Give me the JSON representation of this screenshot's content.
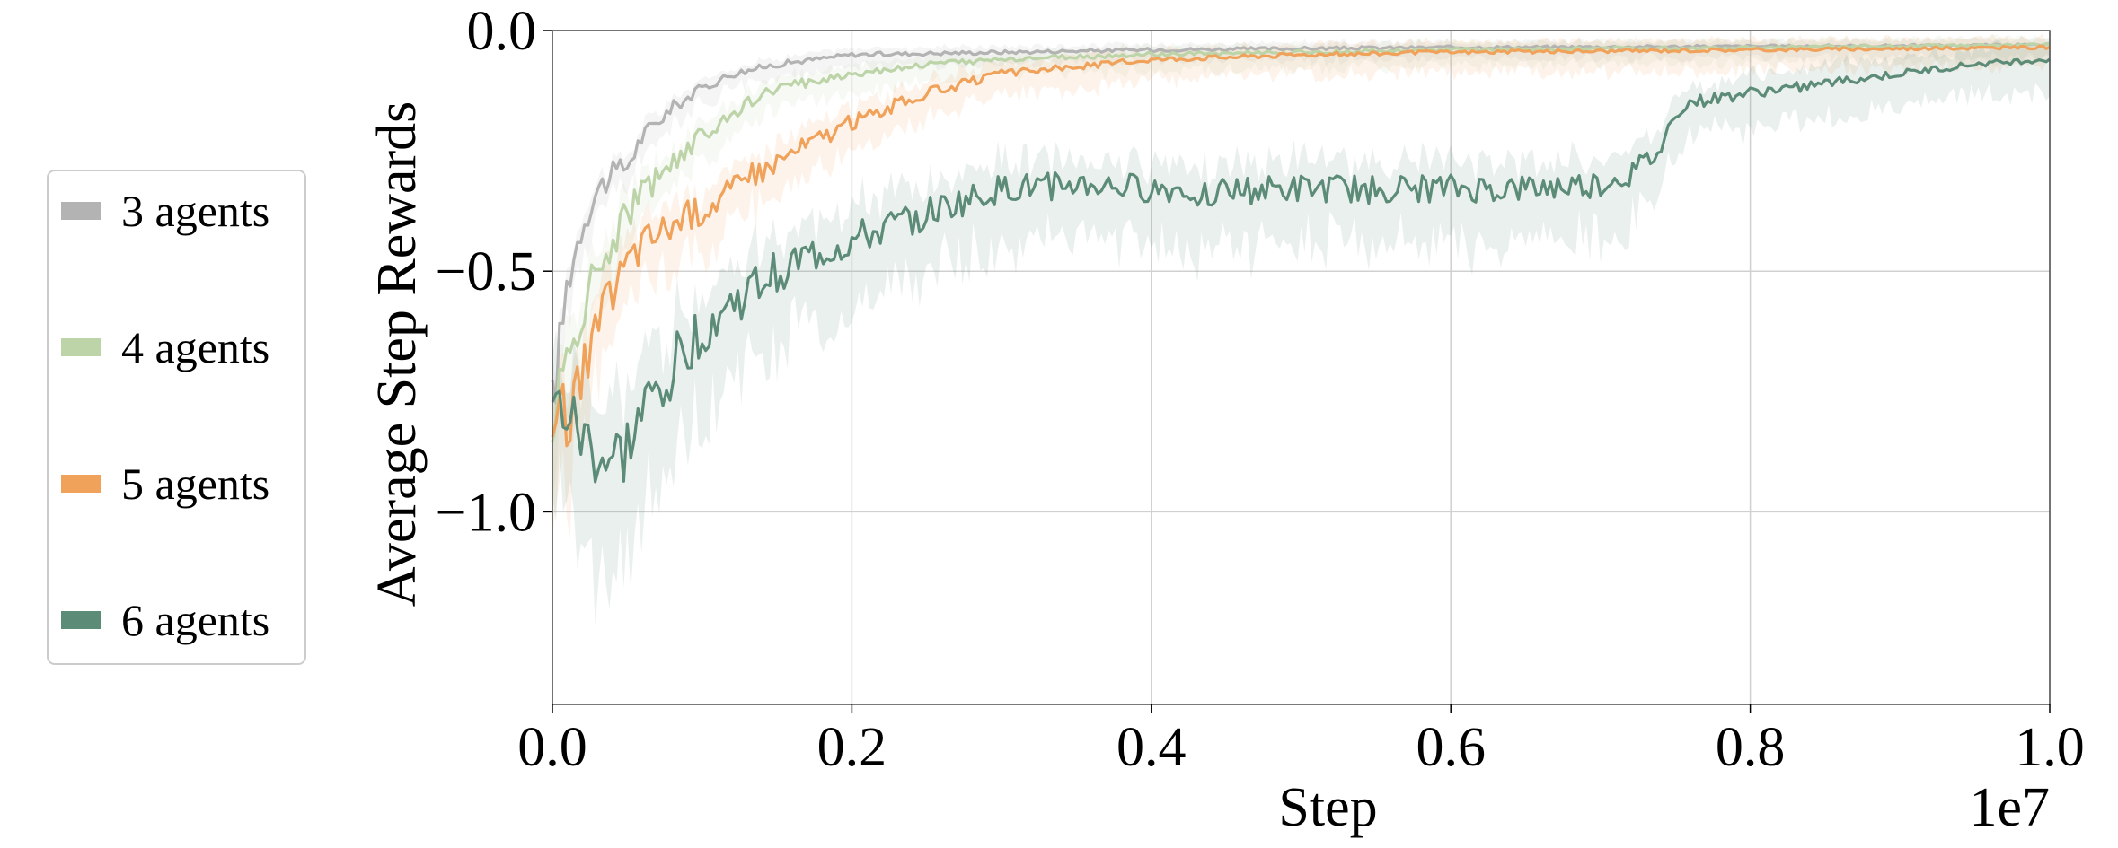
{
  "chart_data": {
    "type": "line",
    "title": "",
    "xlabel": "Step",
    "ylabel": "Average Step Rewards",
    "x_offset_label": "1e7",
    "xlim": [
      0.0,
      1.0
    ],
    "ylim": [
      -1.4,
      0.0
    ],
    "x_ticks": [
      0.0,
      0.2,
      0.4,
      0.6,
      0.8,
      1.0
    ],
    "x_tick_labels": [
      "0.0",
      "0.2",
      "0.4",
      "0.6",
      "0.8",
      "1.0"
    ],
    "y_ticks": [
      0.0,
      -0.5,
      -1.0
    ],
    "y_tick_labels": [
      "0.0",
      "−0.5",
      "−1.0"
    ],
    "grid": true,
    "legend_position": "left-outside",
    "series": [
      {
        "name": "3 agents",
        "color": "#b3b3b3",
        "x": [
          0.0,
          0.01,
          0.02,
          0.03,
          0.04,
          0.05,
          0.06,
          0.08,
          0.1,
          0.12,
          0.15,
          0.2,
          0.3,
          0.4,
          0.6,
          0.8,
          1.0
        ],
        "y": [
          -0.78,
          -0.52,
          -0.4,
          -0.33,
          -0.3,
          -0.28,
          -0.22,
          -0.16,
          -0.12,
          -0.09,
          -0.07,
          -0.05,
          -0.045,
          -0.04,
          -0.035,
          -0.033,
          -0.03
        ],
        "band": 0.06
      },
      {
        "name": "4 agents",
        "color": "#bdd4a8",
        "x": [
          0.0,
          0.01,
          0.02,
          0.03,
          0.04,
          0.05,
          0.06,
          0.08,
          0.1,
          0.12,
          0.15,
          0.2,
          0.25,
          0.3,
          0.4,
          0.5,
          0.6,
          0.8,
          1.0
        ],
        "y": [
          -0.8,
          -0.7,
          -0.58,
          -0.5,
          -0.44,
          -0.38,
          -0.34,
          -0.27,
          -0.22,
          -0.17,
          -0.12,
          -0.09,
          -0.07,
          -0.06,
          -0.05,
          -0.045,
          -0.04,
          -0.035,
          -0.03
        ],
        "band": 0.08
      },
      {
        "name": "5 agents",
        "color": "#f0a25a",
        "x": [
          0.0,
          0.01,
          0.02,
          0.03,
          0.04,
          0.05,
          0.06,
          0.08,
          0.1,
          0.12,
          0.15,
          0.18,
          0.2,
          0.25,
          0.3,
          0.4,
          0.5,
          0.6,
          0.8,
          1.0
        ],
        "y": [
          -0.82,
          -0.8,
          -0.72,
          -0.62,
          -0.54,
          -0.48,
          -0.44,
          -0.4,
          -0.37,
          -0.33,
          -0.27,
          -0.22,
          -0.19,
          -0.13,
          -0.09,
          -0.06,
          -0.05,
          -0.045,
          -0.04,
          -0.035
        ],
        "band": 0.1
      },
      {
        "name": "6 agents",
        "color": "#5c8c78",
        "x": [
          0.0,
          0.01,
          0.02,
          0.03,
          0.04,
          0.05,
          0.06,
          0.08,
          0.1,
          0.12,
          0.15,
          0.18,
          0.2,
          0.25,
          0.3,
          0.35,
          0.4,
          0.45,
          0.5,
          0.55,
          0.6,
          0.65,
          0.7,
          0.72,
          0.74,
          0.75,
          0.76,
          0.8,
          0.85,
          0.9,
          0.95,
          1.0
        ],
        "y": [
          -0.78,
          -0.8,
          -0.85,
          -0.88,
          -0.9,
          -0.87,
          -0.8,
          -0.7,
          -0.62,
          -0.57,
          -0.5,
          -0.46,
          -0.44,
          -0.38,
          -0.33,
          -0.32,
          -0.33,
          -0.335,
          -0.33,
          -0.33,
          -0.33,
          -0.33,
          -0.32,
          -0.3,
          -0.25,
          -0.17,
          -0.15,
          -0.13,
          -0.11,
          -0.09,
          -0.07,
          -0.06
        ],
        "band": 0.14
      }
    ]
  }
}
